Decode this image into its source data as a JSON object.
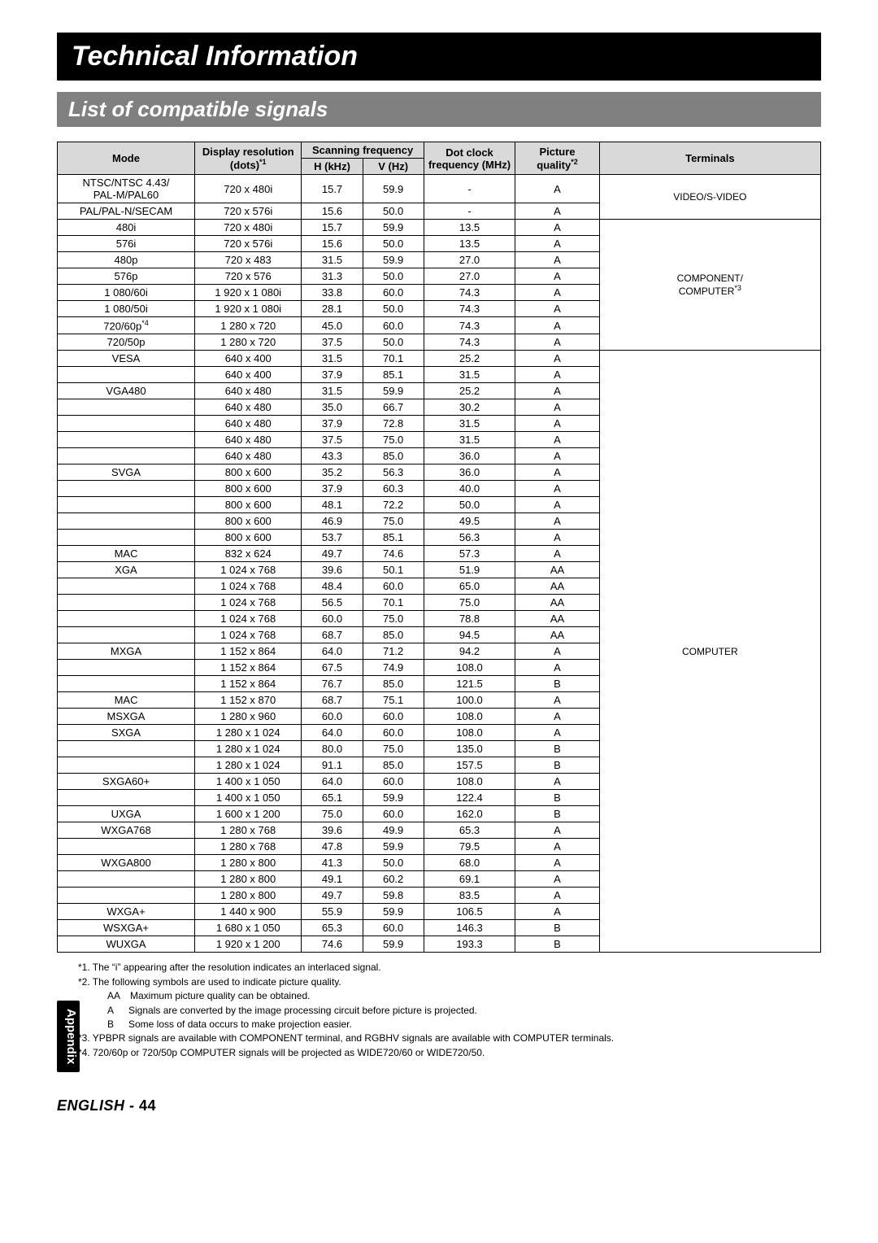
{
  "title": "Technical Information",
  "subtitle": "List of compatible signals",
  "sideTab": "Appendix",
  "footer": {
    "lang": "ENGLISH",
    "sep": " - ",
    "page": "44"
  },
  "headers": {
    "mode": "Mode",
    "display": "Display resolution (dots)",
    "display_sup": "*1",
    "scan": "Scanning frequency",
    "hkhz": "H (kHz)",
    "vhz": "V (Hz)",
    "dot": "Dot clock frequency (MHz)",
    "quality": "Picture quality",
    "quality_sup": "*2",
    "terminals": "Terminals"
  },
  "terminalGroups": {
    "video": "VIDEO/S-VIDEO",
    "component_line1": "COMPONENT/",
    "component_line2": "COMPUTER",
    "component_sup": "*3",
    "computer": "COMPUTER"
  },
  "rows": [
    {
      "g": "video",
      "mode": "NTSC/NTSC 4.43/\nPAL-M/PAL60",
      "res": "720 x 480i",
      "h": "15.7",
      "v": "59.9",
      "dot": "-",
      "q": "A"
    },
    {
      "g": "video",
      "mode": "PAL/PAL-N/SECAM",
      "res": "720 x 576i",
      "h": "15.6",
      "v": "50.0",
      "dot": "-",
      "q": "A"
    },
    {
      "g": "comp",
      "mode": "480i",
      "res": "720 x 480i",
      "h": "15.7",
      "v": "59.9",
      "dot": "13.5",
      "q": "A"
    },
    {
      "g": "comp",
      "mode": "576i",
      "res": "720 x 576i",
      "h": "15.6",
      "v": "50.0",
      "dot": "13.5",
      "q": "A"
    },
    {
      "g": "comp",
      "mode": "480p",
      "res": "720 x 483",
      "h": "31.5",
      "v": "59.9",
      "dot": "27.0",
      "q": "A"
    },
    {
      "g": "comp",
      "mode": "576p",
      "res": "720 x 576",
      "h": "31.3",
      "v": "50.0",
      "dot": "27.0",
      "q": "A"
    },
    {
      "g": "comp",
      "mode": "1 080/60i",
      "res": "1 920 x 1 080i",
      "h": "33.8",
      "v": "60.0",
      "dot": "74.3",
      "q": "A"
    },
    {
      "g": "comp",
      "mode": "1 080/50i",
      "res": "1 920 x 1 080i",
      "h": "28.1",
      "v": "50.0",
      "dot": "74.3",
      "q": "A"
    },
    {
      "g": "comp",
      "mode": "720/60p",
      "mode_sup": "*4",
      "res": "1 280 x 720",
      "h": "45.0",
      "v": "60.0",
      "dot": "74.3",
      "q": "A"
    },
    {
      "g": "comp",
      "mode": "720/50p",
      "res": "1 280 x 720",
      "h": "37.5",
      "v": "50.0",
      "dot": "74.3",
      "q": "A"
    },
    {
      "g": "computer",
      "mode": "VESA",
      "res": "640 x 400",
      "h": "31.5",
      "v": "70.1",
      "dot": "25.2",
      "q": "A"
    },
    {
      "g": "computer",
      "mode": "",
      "res": "640 x 400",
      "h": "37.9",
      "v": "85.1",
      "dot": "31.5",
      "q": "A"
    },
    {
      "g": "computer",
      "mode": "VGA480",
      "res": "640 x 480",
      "h": "31.5",
      "v": "59.9",
      "dot": "25.2",
      "q": "A"
    },
    {
      "g": "computer",
      "mode": "",
      "res": "640 x 480",
      "h": "35.0",
      "v": "66.7",
      "dot": "30.2",
      "q": "A"
    },
    {
      "g": "computer",
      "mode": "",
      "res": "640 x 480",
      "h": "37.9",
      "v": "72.8",
      "dot": "31.5",
      "q": "A"
    },
    {
      "g": "computer",
      "mode": "",
      "res": "640 x 480",
      "h": "37.5",
      "v": "75.0",
      "dot": "31.5",
      "q": "A"
    },
    {
      "g": "computer",
      "mode": "",
      "res": "640 x 480",
      "h": "43.3",
      "v": "85.0",
      "dot": "36.0",
      "q": "A"
    },
    {
      "g": "computer",
      "mode": "SVGA",
      "res": "800 x 600",
      "h": "35.2",
      "v": "56.3",
      "dot": "36.0",
      "q": "A"
    },
    {
      "g": "computer",
      "mode": "",
      "res": "800 x 600",
      "h": "37.9",
      "v": "60.3",
      "dot": "40.0",
      "q": "A"
    },
    {
      "g": "computer",
      "mode": "",
      "res": "800 x 600",
      "h": "48.1",
      "v": "72.2",
      "dot": "50.0",
      "q": "A"
    },
    {
      "g": "computer",
      "mode": "",
      "res": "800 x 600",
      "h": "46.9",
      "v": "75.0",
      "dot": "49.5",
      "q": "A"
    },
    {
      "g": "computer",
      "mode": "",
      "res": "800 x 600",
      "h": "53.7",
      "v": "85.1",
      "dot": "56.3",
      "q": "A"
    },
    {
      "g": "computer",
      "mode": "MAC",
      "res": "832 x 624",
      "h": "49.7",
      "v": "74.6",
      "dot": "57.3",
      "q": "A"
    },
    {
      "g": "computer",
      "mode": "XGA",
      "res": "1 024 x 768",
      "h": "39.6",
      "v": "50.1",
      "dot": "51.9",
      "q": "AA"
    },
    {
      "g": "computer",
      "mode": "",
      "res": "1 024 x 768",
      "h": "48.4",
      "v": "60.0",
      "dot": "65.0",
      "q": "AA"
    },
    {
      "g": "computer",
      "mode": "",
      "res": "1 024 x 768",
      "h": "56.5",
      "v": "70.1",
      "dot": "75.0",
      "q": "AA"
    },
    {
      "g": "computer",
      "mode": "",
      "res": "1 024 x 768",
      "h": "60.0",
      "v": "75.0",
      "dot": "78.8",
      "q": "AA"
    },
    {
      "g": "computer",
      "mode": "",
      "res": "1 024 x 768",
      "h": "68.7",
      "v": "85.0",
      "dot": "94.5",
      "q": "AA"
    },
    {
      "g": "computer",
      "mode": "MXGA",
      "res": "1 152 x 864",
      "h": "64.0",
      "v": "71.2",
      "dot": "94.2",
      "q": "A"
    },
    {
      "g": "computer",
      "mode": "",
      "res": "1 152 x 864",
      "h": "67.5",
      "v": "74.9",
      "dot": "108.0",
      "q": "A"
    },
    {
      "g": "computer",
      "mode": "",
      "res": "1 152 x 864",
      "h": "76.7",
      "v": "85.0",
      "dot": "121.5",
      "q": "B"
    },
    {
      "g": "computer",
      "mode": "MAC",
      "res": "1 152 x 870",
      "h": "68.7",
      "v": "75.1",
      "dot": "100.0",
      "q": "A"
    },
    {
      "g": "computer",
      "mode": "MSXGA",
      "res": "1 280 x 960",
      "h": "60.0",
      "v": "60.0",
      "dot": "108.0",
      "q": "A"
    },
    {
      "g": "computer",
      "mode": "SXGA",
      "res": "1 280 x 1 024",
      "h": "64.0",
      "v": "60.0",
      "dot": "108.0",
      "q": "A"
    },
    {
      "g": "computer",
      "mode": "",
      "res": "1 280 x 1 024",
      "h": "80.0",
      "v": "75.0",
      "dot": "135.0",
      "q": "B"
    },
    {
      "g": "computer",
      "mode": "",
      "res": "1 280 x 1 024",
      "h": "91.1",
      "v": "85.0",
      "dot": "157.5",
      "q": "B"
    },
    {
      "g": "computer",
      "mode": "SXGA60+",
      "res": "1 400 x 1 050",
      "h": "64.0",
      "v": "60.0",
      "dot": "108.0",
      "q": "A"
    },
    {
      "g": "computer",
      "mode": "",
      "res": "1 400 x 1 050",
      "h": "65.1",
      "v": "59.9",
      "dot": "122.4",
      "q": "B"
    },
    {
      "g": "computer",
      "mode": "UXGA",
      "res": "1 600 x 1 200",
      "h": "75.0",
      "v": "60.0",
      "dot": "162.0",
      "q": "B"
    },
    {
      "g": "computer",
      "mode": "WXGA768",
      "res": "1 280 x 768",
      "h": "39.6",
      "v": "49.9",
      "dot": "65.3",
      "q": "A"
    },
    {
      "g": "computer",
      "mode": "",
      "res": "1 280 x 768",
      "h": "47.8",
      "v": "59.9",
      "dot": "79.5",
      "q": "A"
    },
    {
      "g": "computer",
      "mode": "WXGA800",
      "res": "1 280 x 800",
      "h": "41.3",
      "v": "50.0",
      "dot": "68.0",
      "q": "A"
    },
    {
      "g": "computer",
      "mode": "",
      "res": "1 280 x 800",
      "h": "49.1",
      "v": "60.2",
      "dot": "69.1",
      "q": "A"
    },
    {
      "g": "computer",
      "mode": "",
      "res": "1 280 x 800",
      "h": "49.7",
      "v": "59.8",
      "dot": "83.5",
      "q": "A"
    },
    {
      "g": "computer",
      "mode": "WXGA+",
      "res": "1 440 x 900",
      "h": "55.9",
      "v": "59.9",
      "dot": "106.5",
      "q": "A"
    },
    {
      "g": "computer",
      "mode": "WSXGA+",
      "res": "1 680 x 1 050",
      "h": "65.3",
      "v": "60.0",
      "dot": "146.3",
      "q": "B"
    },
    {
      "g": "computer",
      "mode": "WUXGA",
      "res": "1 920 x 1 200",
      "h": "74.6",
      "v": "59.9",
      "dot": "193.3",
      "q": "B"
    }
  ],
  "footnotes": [
    "*1. The “i” appearing after the resolution indicates an interlaced signal.",
    "*2. The following symbols are used to indicate picture quality.",
    "AA Maximum picture quality can be obtained.",
    "A  Signals are converted by the image processing circuit before picture is projected.",
    "B  Some loss of data occurs to make projection easier.",
    "*3. YPBPR signals are available with COMPONENT terminal, and RGBHV signals are available with COMPUTER terminals.",
    "*4. 720/60p or 720/50p COMPUTER signals will be projected as WIDE720/60 or WIDE720/50."
  ],
  "colors": {
    "titleBg": "#000000",
    "subtitleBg": "#808080",
    "headerBg": "#d9d9d9",
    "text": "#000000"
  },
  "fonts": {
    "title": 34,
    "subtitle": 26,
    "body": 13,
    "footnote": 12
  },
  "tableLayout": {
    "colWidths_pct": [
      18,
      14,
      8,
      8,
      12,
      11,
      29
    ]
  },
  "groupSpans": {
    "video": 2,
    "comp": 8,
    "computer": 37
  }
}
